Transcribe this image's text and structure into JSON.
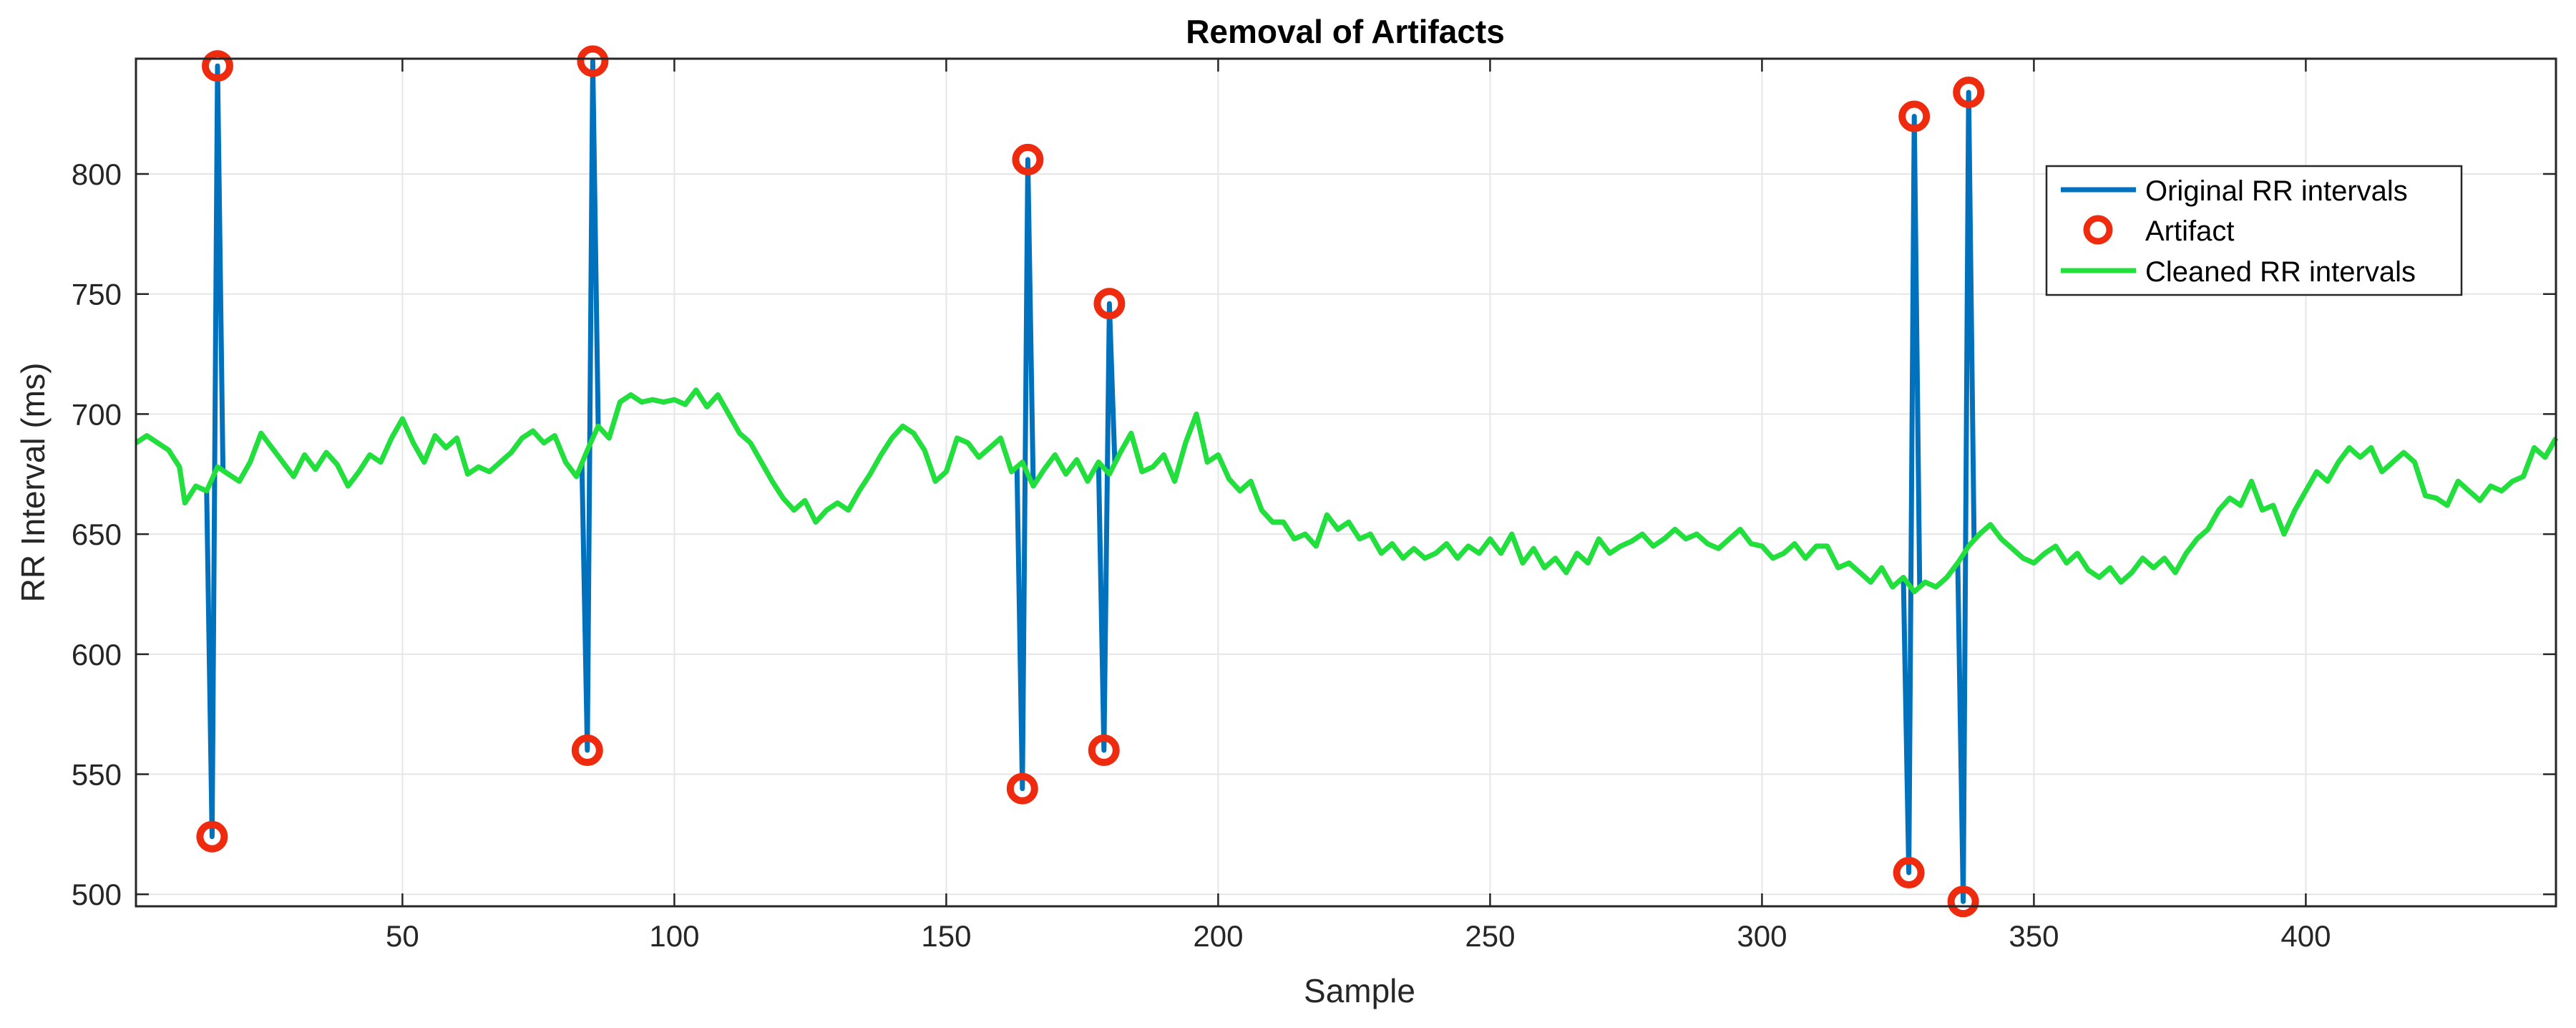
{
  "chart_data": {
    "type": "line",
    "title": "Removal of Artifacts",
    "xlabel": "Sample",
    "ylabel": "RR Interval (ms)",
    "xlim": [
      1,
      446
    ],
    "ylim": [
      495,
      848
    ],
    "xticks": [
      50,
      100,
      150,
      200,
      250,
      300,
      350,
      400
    ],
    "yticks": [
      500,
      550,
      600,
      650,
      700,
      750,
      800
    ],
    "grid": true,
    "legend_position": "top-right",
    "legend": [
      "Original RR intervals",
      "Artifact",
      "Cleaned RR intervals"
    ],
    "colors": {
      "original": "#0072BD",
      "artifact": "#EE2B0F",
      "cleaned": "#22E03A"
    },
    "cleaned_anchors": [
      [
        1,
        688
      ],
      [
        3,
        691
      ],
      [
        5,
        688
      ],
      [
        7,
        685
      ],
      [
        9,
        678
      ],
      [
        10,
        663
      ],
      [
        12,
        670
      ],
      [
        14,
        668
      ],
      [
        16,
        678
      ],
      [
        18,
        675
      ],
      [
        20,
        672
      ],
      [
        22,
        680
      ],
      [
        24,
        692
      ],
      [
        26,
        686
      ],
      [
        28,
        680
      ],
      [
        30,
        674
      ],
      [
        32,
        683
      ],
      [
        34,
        677
      ],
      [
        36,
        684
      ],
      [
        38,
        679
      ],
      [
        40,
        670
      ],
      [
        42,
        676
      ],
      [
        44,
        683
      ],
      [
        46,
        680
      ],
      [
        48,
        690
      ],
      [
        50,
        698
      ],
      [
        52,
        688
      ],
      [
        54,
        680
      ],
      [
        56,
        691
      ],
      [
        58,
        686
      ],
      [
        60,
        690
      ],
      [
        62,
        675
      ],
      [
        64,
        678
      ],
      [
        66,
        676
      ],
      [
        68,
        680
      ],
      [
        70,
        684
      ],
      [
        72,
        690
      ],
      [
        74,
        693
      ],
      [
        76,
        688
      ],
      [
        78,
        691
      ],
      [
        80,
        680
      ],
      [
        82,
        674
      ],
      [
        84,
        685
      ],
      [
        86,
        695
      ],
      [
        88,
        690
      ],
      [
        90,
        705
      ],
      [
        92,
        708
      ],
      [
        94,
        705
      ],
      [
        96,
        706
      ],
      [
        98,
        705
      ],
      [
        100,
        706
      ],
      [
        102,
        704
      ],
      [
        104,
        710
      ],
      [
        106,
        703
      ],
      [
        108,
        708
      ],
      [
        110,
        700
      ],
      [
        112,
        692
      ],
      [
        114,
        688
      ],
      [
        116,
        680
      ],
      [
        118,
        672
      ],
      [
        120,
        665
      ],
      [
        122,
        660
      ],
      [
        124,
        664
      ],
      [
        126,
        655
      ],
      [
        128,
        660
      ],
      [
        130,
        663
      ],
      [
        132,
        660
      ],
      [
        134,
        668
      ],
      [
        136,
        675
      ],
      [
        138,
        683
      ],
      [
        140,
        690
      ],
      [
        142,
        695
      ],
      [
        144,
        692
      ],
      [
        146,
        685
      ],
      [
        148,
        672
      ],
      [
        150,
        676
      ],
      [
        152,
        690
      ],
      [
        154,
        688
      ],
      [
        156,
        682
      ],
      [
        158,
        686
      ],
      [
        160,
        690
      ],
      [
        162,
        676
      ],
      [
        164,
        680
      ],
      [
        166,
        670
      ],
      [
        168,
        677
      ],
      [
        170,
        683
      ],
      [
        172,
        675
      ],
      [
        174,
        681
      ],
      [
        176,
        672
      ],
      [
        178,
        680
      ],
      [
        180,
        675
      ],
      [
        182,
        684
      ],
      [
        184,
        692
      ],
      [
        186,
        676
      ],
      [
        188,
        678
      ],
      [
        190,
        683
      ],
      [
        192,
        672
      ],
      [
        194,
        688
      ],
      [
        196,
        700
      ],
      [
        198,
        680
      ],
      [
        200,
        683
      ],
      [
        202,
        673
      ],
      [
        204,
        668
      ],
      [
        206,
        672
      ],
      [
        208,
        660
      ],
      [
        210,
        655
      ],
      [
        212,
        655
      ],
      [
        214,
        648
      ],
      [
        216,
        650
      ],
      [
        218,
        645
      ],
      [
        220,
        658
      ],
      [
        222,
        652
      ],
      [
        224,
        655
      ],
      [
        226,
        648
      ],
      [
        228,
        650
      ],
      [
        230,
        642
      ],
      [
        232,
        646
      ],
      [
        234,
        640
      ],
      [
        236,
        644
      ],
      [
        238,
        640
      ],
      [
        240,
        642
      ],
      [
        242,
        646
      ],
      [
        244,
        640
      ],
      [
        246,
        645
      ],
      [
        248,
        642
      ],
      [
        250,
        648
      ],
      [
        252,
        642
      ],
      [
        254,
        650
      ],
      [
        256,
        638
      ],
      [
        258,
        644
      ],
      [
        260,
        636
      ],
      [
        262,
        640
      ],
      [
        264,
        634
      ],
      [
        266,
        642
      ],
      [
        268,
        638
      ],
      [
        270,
        648
      ],
      [
        272,
        642
      ],
      [
        274,
        645
      ],
      [
        276,
        647
      ],
      [
        278,
        650
      ],
      [
        280,
        645
      ],
      [
        282,
        648
      ],
      [
        284,
        652
      ],
      [
        286,
        648
      ],
      [
        288,
        650
      ],
      [
        290,
        646
      ],
      [
        292,
        644
      ],
      [
        294,
        648
      ],
      [
        296,
        652
      ],
      [
        298,
        646
      ],
      [
        300,
        645
      ],
      [
        302,
        640
      ],
      [
        304,
        642
      ],
      [
        306,
        646
      ],
      [
        308,
        640
      ],
      [
        310,
        645
      ],
      [
        312,
        645
      ],
      [
        314,
        636
      ],
      [
        316,
        638
      ],
      [
        318,
        634
      ],
      [
        320,
        630
      ],
      [
        322,
        636
      ],
      [
        324,
        628
      ],
      [
        326,
        632
      ],
      [
        328,
        626
      ],
      [
        330,
        630
      ],
      [
        332,
        628
      ],
      [
        334,
        632
      ],
      [
        336,
        638
      ],
      [
        338,
        645
      ],
      [
        340,
        650
      ],
      [
        342,
        654
      ],
      [
        344,
        648
      ],
      [
        346,
        644
      ],
      [
        348,
        640
      ],
      [
        350,
        638
      ],
      [
        352,
        642
      ],
      [
        354,
        645
      ],
      [
        356,
        638
      ],
      [
        358,
        642
      ],
      [
        360,
        635
      ],
      [
        362,
        632
      ],
      [
        364,
        636
      ],
      [
        366,
        630
      ],
      [
        368,
        634
      ],
      [
        370,
        640
      ],
      [
        372,
        636
      ],
      [
        374,
        640
      ],
      [
        376,
        634
      ],
      [
        378,
        642
      ],
      [
        380,
        648
      ],
      [
        382,
        652
      ],
      [
        384,
        660
      ],
      [
        386,
        665
      ],
      [
        388,
        662
      ],
      [
        390,
        672
      ],
      [
        392,
        660
      ],
      [
        394,
        662
      ],
      [
        396,
        650
      ],
      [
        398,
        660
      ],
      [
        400,
        668
      ],
      [
        402,
        676
      ],
      [
        404,
        672
      ],
      [
        406,
        680
      ],
      [
        408,
        686
      ],
      [
        410,
        682
      ],
      [
        412,
        686
      ],
      [
        414,
        676
      ],
      [
        416,
        680
      ],
      [
        418,
        684
      ],
      [
        420,
        680
      ],
      [
        422,
        666
      ],
      [
        424,
        665
      ],
      [
        426,
        662
      ],
      [
        428,
        672
      ],
      [
        430,
        668
      ],
      [
        432,
        664
      ],
      [
        434,
        670
      ],
      [
        436,
        668
      ],
      [
        438,
        672
      ],
      [
        440,
        674
      ],
      [
        442,
        686
      ],
      [
        444,
        682
      ],
      [
        446,
        690
      ]
    ],
    "artifacts": [
      {
        "x": 15,
        "y": 524
      },
      {
        "x": 16,
        "y": 845
      },
      {
        "x": 84,
        "y": 560
      },
      {
        "x": 85,
        "y": 847
      },
      {
        "x": 164,
        "y": 544
      },
      {
        "x": 165,
        "y": 806
      },
      {
        "x": 179,
        "y": 560
      },
      {
        "x": 180,
        "y": 746
      },
      {
        "x": 327,
        "y": 509
      },
      {
        "x": 328,
        "y": 824
      },
      {
        "x": 337,
        "y": 497
      },
      {
        "x": 338,
        "y": 834
      }
    ]
  }
}
